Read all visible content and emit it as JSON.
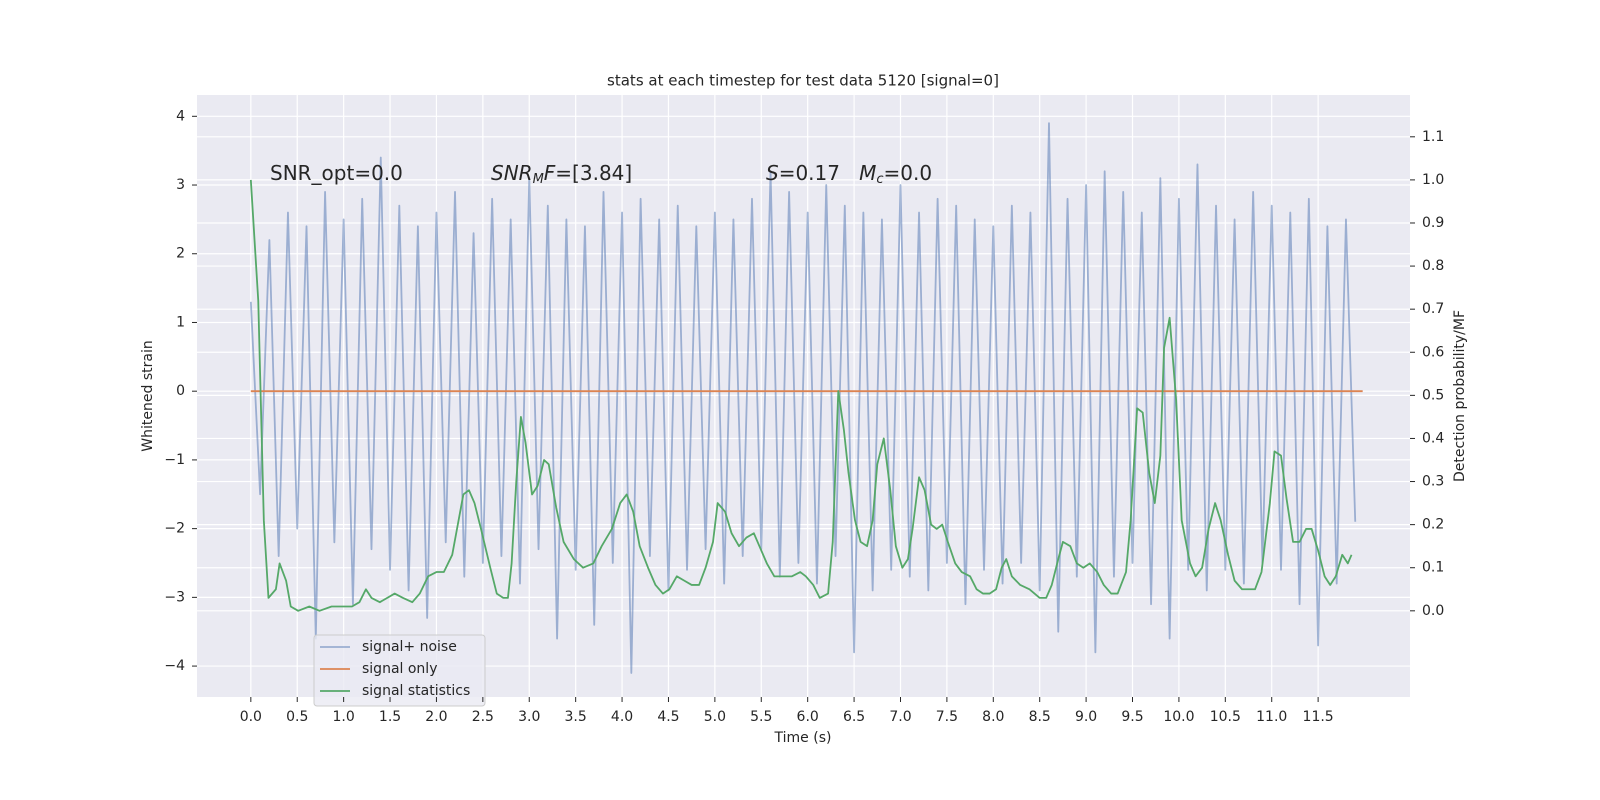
{
  "chart_data": {
    "type": "line",
    "title": "stats at each timestep for test data 5120 [signal=0]",
    "xlabel": "Time (s)",
    "ylabel": "Whitened strain",
    "y2label": "Detection probability/MF",
    "annotations": [
      [
        {
          "text": "SNR_opt=0.0"
        }
      ],
      [
        {
          "text": "SNR",
          "style": "italic"
        },
        {
          "text": "M",
          "style": "italic-sub"
        },
        {
          "text": "F",
          "style": "italic"
        },
        {
          "text": "=[3.84]"
        }
      ],
      [
        {
          "text": "S",
          "style": "italic"
        },
        {
          "text": "=0.17   "
        },
        {
          "text": "M",
          "style": "italic"
        },
        {
          "text": "c",
          "style": "italic-sub"
        },
        {
          "text": "=0.0"
        }
      ]
    ],
    "grid": true,
    "legend": "lower left",
    "xlim": [
      -0.58,
      12.49
    ],
    "ylim": [
      -4.45,
      4.31
    ],
    "y2lim": [
      -0.2,
      1.197
    ],
    "xticks": [
      {
        "value": 0,
        "label": "0.0"
      },
      0.5,
      {
        "value": 1,
        "label": "1.0"
      },
      1.5,
      {
        "value": 2,
        "label": "2.0"
      },
      2.5,
      {
        "value": 3,
        "label": "3.0"
      },
      3.5,
      {
        "value": 4,
        "label": "4.0"
      },
      4.5,
      {
        "value": 5,
        "label": "5.0"
      },
      5.5,
      {
        "value": 6,
        "label": "6.0"
      },
      6.5,
      {
        "value": 7,
        "label": "7.0"
      },
      7.5,
      {
        "value": 8,
        "label": "8.0"
      },
      8.5,
      {
        "value": 9,
        "label": "9.0"
      },
      9.5,
      {
        "value": 10,
        "label": "10.0"
      },
      10.5,
      {
        "value": 11,
        "label": "11.0"
      },
      11.5
    ],
    "yticks": [
      {
        "value": -4,
        "label": "−4"
      },
      {
        "value": -3,
        "label": "−3"
      },
      {
        "value": -2,
        "label": "−2"
      },
      {
        "value": -1,
        "label": "−1"
      },
      0,
      1,
      2,
      3,
      4
    ],
    "y2ticks": [
      {
        "value": 0,
        "label": "0.0"
      },
      0.1,
      0.2,
      0.3,
      0.4,
      0.5,
      0.6,
      0.7,
      0.8,
      0.9,
      {
        "value": 1,
        "label": "1.0"
      },
      1.1
    ],
    "series": [
      {
        "name": "signal+ noise",
        "color": "#4c72b0",
        "alpha": 0.5,
        "axis": "y",
        "x": [
          0.0,
          0.1,
          0.2,
          0.3,
          0.4,
          0.5,
          0.6,
          0.7,
          0.8,
          0.9,
          1.0,
          1.1,
          1.2,
          1.3,
          1.4,
          1.5,
          1.6,
          1.7,
          1.8,
          1.9,
          2.0,
          2.1,
          2.2,
          2.3,
          2.4,
          2.5,
          2.6,
          2.7,
          2.8,
          2.9,
          3.0,
          3.1,
          3.2,
          3.3,
          3.4,
          3.5,
          3.6,
          3.7,
          3.8,
          3.9,
          4.0,
          4.1,
          4.2,
          4.3,
          4.4,
          4.5,
          4.6,
          4.7,
          4.8,
          4.9,
          5.0,
          5.1,
          5.2,
          5.3,
          5.4,
          5.5,
          5.6,
          5.7,
          5.8,
          5.9,
          6.0,
          6.1,
          6.2,
          6.3,
          6.4,
          6.5,
          6.6,
          6.7,
          6.8,
          6.9,
          7.0,
          7.1,
          7.2,
          7.3,
          7.4,
          7.5,
          7.6,
          7.7,
          7.8,
          7.9,
          8.0,
          8.1,
          8.2,
          8.3,
          8.4,
          8.5,
          8.6,
          8.7,
          8.8,
          8.9,
          9.0,
          9.1,
          9.2,
          9.3,
          9.4,
          9.5,
          9.6,
          9.7,
          9.8,
          9.9,
          10.0,
          10.1,
          10.2,
          10.3,
          10.4,
          10.5,
          10.6,
          10.7,
          10.8,
          10.9,
          11.0,
          11.1,
          11.2,
          11.3,
          11.4,
          11.5,
          11.6,
          11.7,
          11.8,
          11.9
        ],
        "values": [
          1.3,
          -1.5,
          2.2,
          -2.4,
          2.6,
          -2.0,
          2.4,
          -3.6,
          2.9,
          -2.2,
          2.5,
          -3.1,
          2.8,
          -2.3,
          3.4,
          -2.6,
          2.7,
          -2.9,
          2.4,
          -3.3,
          2.6,
          -2.2,
          2.9,
          -2.7,
          2.3,
          -2.5,
          2.8,
          -2.4,
          2.5,
          -2.8,
          3.1,
          -2.3,
          2.7,
          -3.6,
          2.5,
          -2.6,
          2.4,
          -3.4,
          2.9,
          -2.5,
          2.6,
          -4.1,
          2.8,
          -2.4,
          2.5,
          -2.9,
          2.7,
          -2.6,
          2.4,
          -2.3,
          2.6,
          -2.8,
          2.5,
          -2.4,
          2.8,
          -2.3,
          3.2,
          -2.7,
          2.9,
          -2.5,
          2.6,
          -2.8,
          3.0,
          -2.4,
          2.7,
          -3.8,
          2.6,
          -2.9,
          2.5,
          -2.6,
          3.0,
          -2.7,
          2.6,
          -2.9,
          2.8,
          -2.5,
          2.7,
          -3.1,
          2.5,
          -2.6,
          2.4,
          -2.8,
          2.7,
          -2.5,
          2.6,
          -2.9,
          3.9,
          -3.5,
          2.8,
          -2.7,
          3.0,
          -3.8,
          3.2,
          -2.7,
          2.9,
          -2.5,
          2.6,
          -3.1,
          3.1,
          -3.6,
          2.8,
          -2.6,
          3.3,
          -2.9,
          2.7,
          -2.6,
          2.5,
          -2.8,
          2.9,
          -2.5,
          2.7,
          -2.6,
          2.6,
          -3.1,
          2.8,
          -3.7,
          2.4,
          -2.8,
          2.5,
          -1.9
        ]
      },
      {
        "name": "signal only",
        "color": "#dd8452",
        "alpha": 1,
        "axis": "y",
        "x": [
          0.0,
          11.98
        ],
        "values": [
          0,
          0
        ]
      },
      {
        "name": "signal statistics",
        "color": "#55a868",
        "alpha": 1,
        "axis": "y2",
        "x": [
          0.0,
          0.08,
          0.14,
          0.19,
          0.27,
          0.31,
          0.38,
          0.43,
          0.51,
          0.63,
          0.74,
          0.87,
          0.98,
          1.09,
          1.17,
          1.24,
          1.3,
          1.39,
          1.47,
          1.55,
          1.64,
          1.74,
          1.82,
          1.91,
          2.0,
          2.08,
          2.17,
          2.23,
          2.29,
          2.35,
          2.41,
          2.48,
          2.58,
          2.65,
          2.72,
          2.77,
          2.81,
          2.86,
          2.91,
          2.96,
          3.03,
          3.09,
          3.16,
          3.21,
          3.29,
          3.37,
          3.48,
          3.58,
          3.69,
          3.78,
          3.89,
          3.98,
          4.05,
          4.12,
          4.19,
          4.28,
          4.36,
          4.44,
          4.51,
          4.59,
          4.67,
          4.75,
          4.83,
          4.9,
          4.98,
          5.03,
          5.11,
          5.18,
          5.26,
          5.34,
          5.42,
          5.48,
          5.56,
          5.64,
          5.72,
          5.83,
          5.92,
          5.98,
          6.06,
          6.13,
          6.22,
          6.27,
          6.33,
          6.39,
          6.44,
          6.51,
          6.57,
          6.64,
          6.7,
          6.75,
          6.82,
          6.89,
          6.95,
          7.02,
          7.08,
          7.13,
          7.2,
          7.26,
          7.33,
          7.39,
          7.45,
          7.51,
          7.59,
          7.66,
          7.75,
          7.82,
          7.89,
          7.96,
          8.03,
          8.09,
          8.14,
          8.2,
          8.29,
          8.39,
          8.5,
          8.57,
          8.63,
          8.7,
          8.75,
          8.83,
          8.9,
          8.97,
          9.04,
          9.12,
          9.19,
          9.27,
          9.34,
          9.43,
          9.48,
          9.55,
          9.61,
          9.68,
          9.74,
          9.8,
          9.84,
          9.9,
          9.97,
          10.03,
          10.12,
          10.18,
          10.25,
          10.32,
          10.39,
          10.45,
          10.53,
          10.6,
          10.68,
          10.74,
          10.82,
          10.89,
          10.98,
          11.03,
          11.1,
          11.16,
          11.23,
          11.3,
          11.37,
          11.43,
          11.5,
          11.57,
          11.63,
          11.69,
          11.76,
          11.82,
          11.86
        ],
        "values": [
          1.0,
          0.72,
          0.21,
          0.03,
          0.05,
          0.11,
          0.07,
          0.01,
          0.0,
          0.01,
          0.0,
          0.01,
          0.01,
          0.01,
          0.02,
          0.05,
          0.03,
          0.02,
          0.03,
          0.04,
          0.03,
          0.02,
          0.04,
          0.08,
          0.09,
          0.09,
          0.13,
          0.2,
          0.27,
          0.28,
          0.25,
          0.19,
          0.1,
          0.04,
          0.03,
          0.03,
          0.11,
          0.3,
          0.45,
          0.39,
          0.27,
          0.29,
          0.35,
          0.34,
          0.24,
          0.16,
          0.12,
          0.1,
          0.11,
          0.15,
          0.19,
          0.25,
          0.27,
          0.23,
          0.15,
          0.1,
          0.06,
          0.04,
          0.05,
          0.08,
          0.07,
          0.06,
          0.06,
          0.1,
          0.16,
          0.25,
          0.23,
          0.18,
          0.15,
          0.17,
          0.18,
          0.15,
          0.11,
          0.08,
          0.08,
          0.08,
          0.09,
          0.08,
          0.06,
          0.03,
          0.04,
          0.16,
          0.51,
          0.42,
          0.32,
          0.21,
          0.16,
          0.15,
          0.21,
          0.34,
          0.4,
          0.28,
          0.15,
          0.1,
          0.12,
          0.19,
          0.31,
          0.28,
          0.2,
          0.19,
          0.2,
          0.16,
          0.11,
          0.09,
          0.08,
          0.05,
          0.04,
          0.04,
          0.05,
          0.1,
          0.12,
          0.08,
          0.06,
          0.05,
          0.03,
          0.03,
          0.06,
          0.12,
          0.16,
          0.15,
          0.11,
          0.1,
          0.11,
          0.09,
          0.06,
          0.04,
          0.04,
          0.09,
          0.21,
          0.47,
          0.46,
          0.32,
          0.25,
          0.36,
          0.61,
          0.68,
          0.49,
          0.21,
          0.11,
          0.08,
          0.1,
          0.19,
          0.25,
          0.21,
          0.13,
          0.07,
          0.05,
          0.05,
          0.05,
          0.09,
          0.25,
          0.37,
          0.36,
          0.26,
          0.16,
          0.16,
          0.19,
          0.19,
          0.14,
          0.08,
          0.06,
          0.08,
          0.13,
          0.11,
          0.13
        ]
      }
    ]
  }
}
